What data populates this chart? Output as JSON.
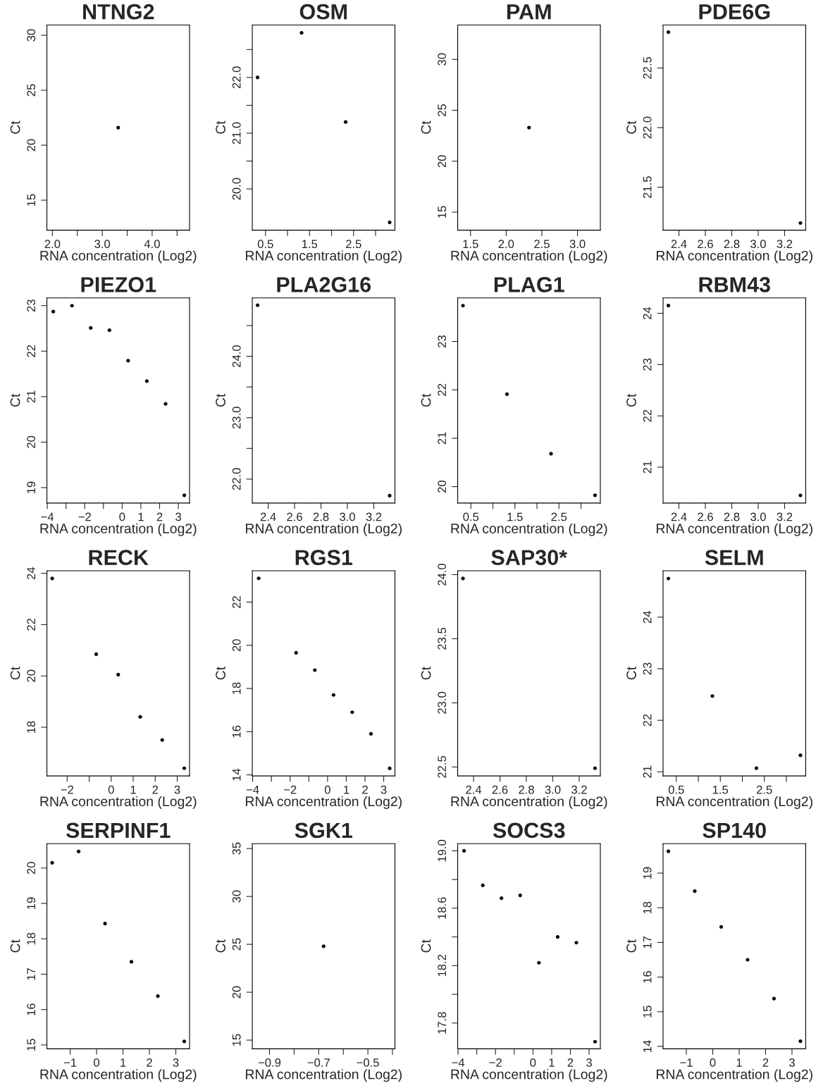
{
  "chart_data": [
    {
      "type": "scatter",
      "title": "NTNG2",
      "xlabel": "RNA concentration (Log2)",
      "ylabel": "Ct",
      "marker": "circle",
      "series": [
        {
          "color": "#000000",
          "x": [
            3.32
          ],
          "values": [
            21.6
          ]
        }
      ],
      "xlim": [
        1.89,
        4.75
      ],
      "ylim": [
        12.27,
        30.93
      ],
      "xticks": [
        {
          "value": 2.0,
          "label": "2.0"
        },
        {
          "value": 2.5,
          "label": null
        },
        {
          "value": 3.0,
          "label": "3.0"
        },
        {
          "value": 3.5,
          "label": null
        },
        {
          "value": 4.0,
          "label": "4.0"
        },
        {
          "value": 4.5,
          "label": null
        }
      ],
      "yticks": [
        15,
        20,
        25,
        30
      ]
    },
    {
      "type": "scatter",
      "title": "OSM",
      "xlabel": "RNA concentration (Log2)",
      "ylabel": "Ct",
      "marker": "circle",
      "series": [
        {
          "color": "#000000",
          "x": [
            0.32,
            1.32,
            2.32,
            3.32
          ],
          "values": [
            22.0,
            22.8,
            21.2,
            19.4
          ]
        }
      ],
      "xlim": [
        0.2,
        3.44
      ],
      "ylim": [
        19.26,
        22.94
      ],
      "xticks": [
        {
          "value": 0.5,
          "label": "0.5"
        },
        {
          "value": 1.0,
          "label": null
        },
        {
          "value": 1.5,
          "label": "1.5"
        },
        {
          "value": 2.0,
          "label": null
        },
        {
          "value": 2.5,
          "label": "2.5"
        },
        {
          "value": 3.0,
          "label": null
        }
      ],
      "yticks": [
        {
          "value": 20.0,
          "label": "20.0"
        },
        {
          "value": 20.5,
          "label": null
        },
        {
          "value": 21.0,
          "label": "21.0"
        },
        {
          "value": 21.5,
          "label": null
        },
        {
          "value": 22.0,
          "label": "22.0"
        },
        {
          "value": 22.5,
          "label": null
        }
      ]
    },
    {
      "type": "scatter",
      "title": "PAM",
      "xlabel": "RNA concentration (Log2)",
      "ylabel": "Ct",
      "marker": "circle",
      "series": [
        {
          "color": "#000000",
          "x": [
            2.32
          ],
          "values": [
            23.3
          ]
        }
      ],
      "xlim": [
        1.32,
        3.32
      ],
      "ylim": [
        13.23,
        33.37
      ],
      "xticks": [
        {
          "value": 1.5,
          "label": "1.5"
        },
        {
          "value": 2.0,
          "label": "2.0"
        },
        {
          "value": 2.5,
          "label": "2.5"
        },
        {
          "value": 3.0,
          "label": "3.0"
        }
      ],
      "yticks": [
        15,
        20,
        25,
        30
      ]
    },
    {
      "type": "scatter",
      "title": "PDE6G",
      "xlabel": "RNA concentration (Log2)",
      "ylabel": "Ct",
      "marker": "circle",
      "series": [
        {
          "color": "#000000",
          "x": [
            2.32,
            3.32
          ],
          "values": [
            22.8,
            21.2
          ]
        }
      ],
      "xlim": [
        2.28,
        3.36
      ],
      "ylim": [
        21.14,
        22.86
      ],
      "xticks": [
        2.4,
        2.6,
        2.8,
        {
          "value": 3.0,
          "label": "3.0"
        },
        3.2
      ],
      "yticks": [
        21.5,
        {
          "value": 22.0,
          "label": "22.0"
        },
        22.5
      ]
    },
    {
      "type": "scatter",
      "title": "PIEZO1",
      "xlabel": "RNA concentration (Log2)",
      "ylabel": "Ct",
      "marker": "circle",
      "series": [
        {
          "color": "#000000",
          "x": [
            -3.68,
            -2.68,
            -1.68,
            -0.68,
            0.32,
            1.32,
            2.32,
            3.32
          ],
          "values": [
            22.87,
            23.0,
            22.51,
            22.46,
            21.79,
            21.34,
            20.84,
            18.83
          ]
        }
      ],
      "xlim": [
        -4.02,
        3.6
      ],
      "ylim": [
        18.66,
        23.17
      ],
      "xticks": [
        {
          "value": -4,
          "label": "−4"
        },
        {
          "value": -3,
          "label": null
        },
        {
          "value": -2,
          "label": "−2"
        },
        {
          "value": -1,
          "label": null
        },
        0,
        1,
        2,
        3
      ],
      "yticks": [
        19,
        20,
        21,
        22,
        23
      ]
    },
    {
      "type": "scatter",
      "title": "PLA2G16",
      "xlabel": "RNA concentration (Log2)",
      "ylabel": "Ct",
      "marker": "circle",
      "series": [
        {
          "color": "#000000",
          "x": [
            2.32,
            3.32
          ],
          "values": [
            24.83,
            21.73
          ]
        }
      ],
      "xlim": [
        2.28,
        3.36
      ],
      "ylim": [
        21.61,
        24.95
      ],
      "xticks": [
        2.4,
        2.6,
        2.8,
        {
          "value": 3.0,
          "label": "3.0"
        },
        3.2
      ],
      "yticks": [
        {
          "value": 22.0,
          "label": "22.0"
        },
        {
          "value": 22.5,
          "label": null
        },
        {
          "value": 23.0,
          "label": "23.0"
        },
        {
          "value": 23.5,
          "label": null
        },
        {
          "value": 24.0,
          "label": "24.0"
        },
        {
          "value": 24.5,
          "label": null
        }
      ]
    },
    {
      "type": "scatter",
      "title": "PLAG1",
      "xlabel": "RNA concentration (Log2)",
      "ylabel": "Ct",
      "marker": "circle",
      "series": [
        {
          "color": "#000000",
          "x": [
            0.32,
            1.32,
            2.32,
            3.32
          ],
          "values": [
            23.74,
            21.91,
            20.68,
            19.82
          ]
        }
      ],
      "xlim": [
        0.2,
        3.44
      ],
      "ylim": [
        19.66,
        23.9
      ],
      "xticks": [
        {
          "value": 0.5,
          "label": "0.5"
        },
        {
          "value": 1.0,
          "label": null
        },
        {
          "value": 1.5,
          "label": "1.5"
        },
        {
          "value": 2.0,
          "label": null
        },
        {
          "value": 2.5,
          "label": "2.5"
        },
        {
          "value": 3.0,
          "label": null
        }
      ],
      "yticks": [
        20,
        21,
        22,
        23
      ]
    },
    {
      "type": "scatter",
      "title": "RBM43",
      "xlabel": "RNA concentration (Log2)",
      "ylabel": "Ct",
      "marker": "circle",
      "series": [
        {
          "color": "#000000",
          "x": [
            2.32,
            3.32
          ],
          "values": [
            24.15,
            20.45
          ]
        }
      ],
      "xlim": [
        2.28,
        3.36
      ],
      "ylim": [
        20.3,
        24.3
      ],
      "xticks": [
        2.4,
        2.6,
        2.8,
        {
          "value": 3.0,
          "label": "3.0"
        },
        3.2
      ],
      "yticks": [
        21,
        22,
        23,
        24
      ]
    },
    {
      "type": "scatter",
      "title": "RECK",
      "xlabel": "RNA concentration (Log2)",
      "ylabel": "Ct",
      "marker": "circle",
      "series": [
        {
          "color": "#000000",
          "x": [
            -2.68,
            -0.68,
            0.32,
            1.32,
            2.32,
            3.32
          ],
          "values": [
            23.8,
            20.85,
            20.05,
            18.4,
            17.5,
            16.4
          ]
        }
      ],
      "xlim": [
        -2.92,
        3.56
      ],
      "ylim": [
        16.1,
        24.1
      ],
      "xticks": [
        {
          "value": -2,
          "label": "−2"
        },
        {
          "value": -1,
          "label": null
        },
        0,
        1,
        2,
        3
      ],
      "yticks": [
        18,
        20,
        22,
        24
      ]
    },
    {
      "type": "scatter",
      "title": "RGS1",
      "xlabel": "RNA concentration (Log2)",
      "ylabel": "Ct",
      "marker": "circle",
      "series": [
        {
          "color": "#000000",
          "x": [
            -3.68,
            -1.68,
            -0.68,
            0.32,
            1.32,
            2.32,
            3.32
          ],
          "values": [
            23.1,
            19.65,
            18.85,
            17.7,
            16.9,
            15.9,
            14.3
          ]
        }
      ],
      "xlim": [
        -4.02,
        3.6
      ],
      "ylim": [
        13.95,
        23.45
      ],
      "xticks": [
        {
          "value": -4,
          "label": "−4"
        },
        {
          "value": -3,
          "label": null
        },
        {
          "value": -2,
          "label": "−2"
        },
        {
          "value": -1,
          "label": null
        },
        0,
        1,
        2,
        3
      ],
      "yticks": [
        14,
        16,
        18,
        20,
        22
      ]
    },
    {
      "type": "scatter",
      "title": "SAP30*",
      "xlabel": "RNA concentration (Log2)",
      "ylabel": "Ct",
      "marker": "circle",
      "series": [
        {
          "color": "#000000",
          "x": [
            2.32,
            3.32
          ],
          "values": [
            23.97,
            22.49
          ]
        }
      ],
      "xlim": [
        2.28,
        3.36
      ],
      "ylim": [
        22.43,
        24.03
      ],
      "xticks": [
        2.4,
        2.6,
        2.8,
        {
          "value": 3.0,
          "label": "3.0"
        },
        3.2
      ],
      "yticks": [
        22.5,
        {
          "value": 23.0,
          "label": "23.0"
        },
        23.5,
        {
          "value": 24.0,
          "label": "24.0"
        }
      ]
    },
    {
      "type": "scatter",
      "title": "SELM",
      "xlabel": "RNA concentration (Log2)",
      "ylabel": "Ct",
      "marker": "circle",
      "series": [
        {
          "color": "#000000",
          "x": [
            0.32,
            1.32,
            2.32,
            3.32
          ],
          "values": [
            24.75,
            22.47,
            21.07,
            21.32
          ]
        }
      ],
      "xlim": [
        0.2,
        3.44
      ],
      "ylim": [
        20.92,
        24.9
      ],
      "xticks": [
        {
          "value": 0.5,
          "label": "0.5"
        },
        {
          "value": 1.0,
          "label": null
        },
        {
          "value": 1.5,
          "label": "1.5"
        },
        {
          "value": 2.0,
          "label": null
        },
        {
          "value": 2.5,
          "label": "2.5"
        },
        {
          "value": 3.0,
          "label": null
        }
      ],
      "yticks": [
        21,
        22,
        23,
        24
      ]
    },
    {
      "type": "scatter",
      "title": "SERPINF1",
      "xlabel": "RNA concentration (Log2)",
      "ylabel": "Ct",
      "marker": "circle",
      "series": [
        {
          "color": "#000000",
          "x": [
            -1.68,
            -0.68,
            0.32,
            1.32,
            2.32,
            3.32
          ],
          "values": [
            20.15,
            20.47,
            18.43,
            17.35,
            16.38,
            15.1
          ]
        }
      ],
      "xlim": [
        -1.88,
        3.52
      ],
      "ylim": [
        14.89,
        20.69
      ],
      "xticks": [
        {
          "value": -1,
          "label": "−1"
        },
        0,
        1,
        2,
        3
      ],
      "yticks": [
        15,
        16,
        17,
        18,
        19,
        20
      ]
    },
    {
      "type": "scatter",
      "title": "SGK1",
      "xlabel": "RNA concentration (Log2)",
      "ylabel": "Ct",
      "marker": "circle",
      "series": [
        {
          "color": "#000000",
          "x": [
            -0.68
          ],
          "values": [
            24.8
          ]
        }
      ],
      "xlim": [
        -0.97,
        -0.39
      ],
      "ylim": [
        14.09,
        35.51
      ],
      "xticks": [
        {
          "value": -0.9,
          "label": "−0.9"
        },
        {
          "value": -0.8,
          "label": null
        },
        {
          "value": -0.7,
          "label": "−0.7"
        },
        {
          "value": -0.6,
          "label": null
        },
        {
          "value": -0.5,
          "label": "−0.5"
        },
        {
          "value": -0.4,
          "label": null
        }
      ],
      "yticks": [
        15,
        20,
        25,
        30,
        35
      ]
    },
    {
      "type": "scatter",
      "title": "SOCS3",
      "xlabel": "RNA concentration (Log2)",
      "ylabel": "Ct",
      "marker": "circle",
      "series": [
        {
          "color": "#000000",
          "x": [
            -3.68,
            -2.68,
            -1.68,
            -0.68,
            0.32,
            1.32,
            2.32,
            3.32
          ],
          "values": [
            19.0,
            18.76,
            18.67,
            18.69,
            18.22,
            18.4,
            18.36,
            17.67
          ]
        }
      ],
      "xlim": [
        -4.02,
        3.6
      ],
      "ylim": [
        17.62,
        19.05
      ],
      "xticks": [
        {
          "value": -4,
          "label": "−4"
        },
        {
          "value": -3,
          "label": null
        },
        {
          "value": -2,
          "label": "−2"
        },
        {
          "value": -1,
          "label": null
        },
        0,
        1,
        2,
        3
      ],
      "yticks": [
        17.8,
        {
          "value": 18.0,
          "label": null
        },
        18.2,
        {
          "value": 18.4,
          "label": null
        },
        18.6,
        {
          "value": 18.8,
          "label": null
        },
        {
          "value": 19.0,
          "label": "19.0"
        }
      ]
    },
    {
      "type": "scatter",
      "title": "SP140",
      "xlabel": "RNA concentration (Log2)",
      "ylabel": "Ct",
      "marker": "circle",
      "series": [
        {
          "color": "#000000",
          "x": [
            -1.68,
            -0.68,
            0.32,
            1.32,
            2.32,
            3.32
          ],
          "values": [
            19.63,
            18.48,
            17.45,
            16.5,
            15.38,
            14.15
          ]
        }
      ],
      "xlim": [
        -1.88,
        3.52
      ],
      "ylim": [
        13.93,
        19.85
      ],
      "xticks": [
        {
          "value": -1,
          "label": "−1"
        },
        0,
        1,
        2,
        3
      ],
      "yticks": [
        14,
        15,
        16,
        17,
        18,
        19
      ]
    }
  ]
}
